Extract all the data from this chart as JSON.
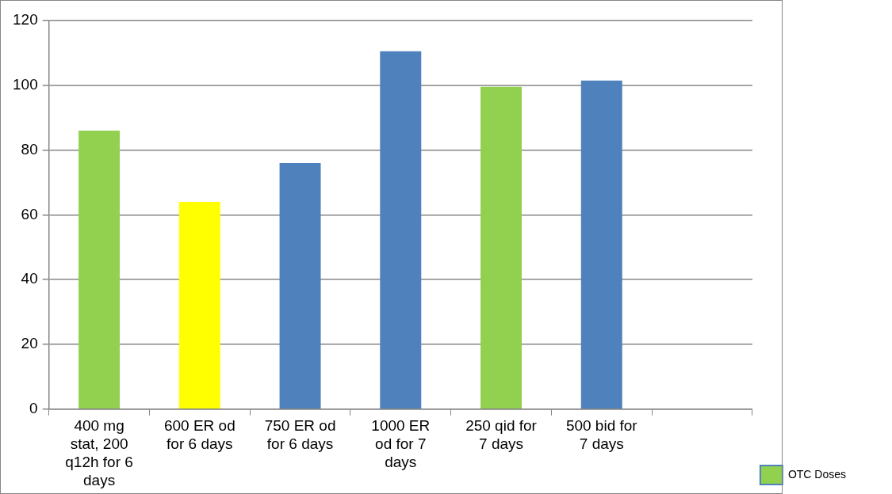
{
  "chart_data": {
    "type": "bar",
    "categories": [
      "400 mg stat, 200 q12h for 6 days",
      "600 ER od for 6 days",
      "750 ER od for 6 days",
      "1000 ER od for 7 days",
      "250 qid for 7 days",
      "500 bid for 7 days",
      null
    ],
    "series": [
      {
        "name": "OTC Doses",
        "color": "#4f81bd",
        "colors": [
          "#92d050",
          "#ffff00",
          "#4f81bd",
          "#4f81bd",
          "#92d050",
          "#4f81bd",
          null
        ],
        "values": [
          86,
          64,
          76,
          110.5,
          99.5,
          101.5,
          null
        ]
      }
    ],
    "ylim": [
      0,
      120
    ],
    "yticks": [
      0,
      20,
      40,
      60,
      80,
      100,
      120
    ],
    "grid": "y",
    "legend": "bottom right"
  }
}
